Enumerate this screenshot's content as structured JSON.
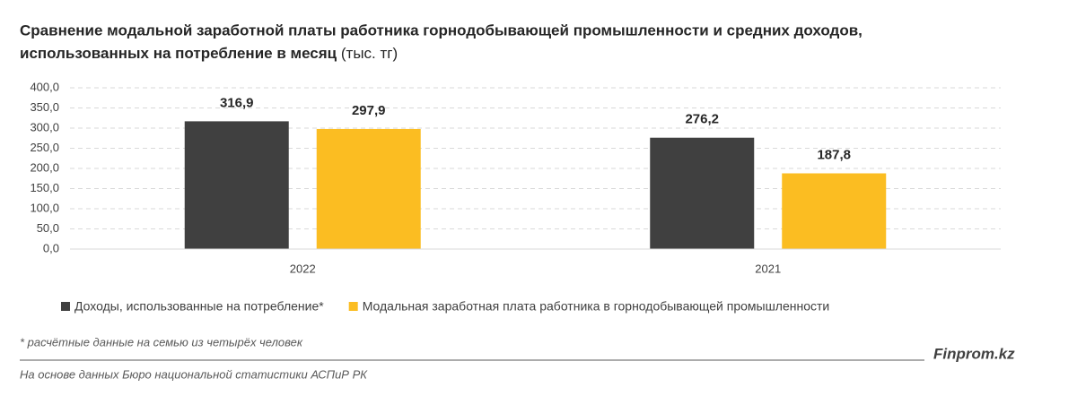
{
  "chart_data": {
    "type": "bar",
    "title": "Сравнение модальной заработной платы работника горнодобывающей промышленности и средних доходов,",
    "title_line2": "использованных на потребление в месяц",
    "unit": "(тыс. тг)",
    "categories": [
      "2022",
      "2021"
    ],
    "series": [
      {
        "name": "Доходы, использованные на потребление*",
        "color": "#404040",
        "values": [
          316.9,
          276.2
        ],
        "value_labels": [
          "316,9",
          "276,2"
        ]
      },
      {
        "name": "Модальная заработная плата работника в горнодобывающей промышленности",
        "color": "#fbbd22",
        "values": [
          297.9,
          187.8
        ],
        "value_labels": [
          "297,9",
          "187,8"
        ]
      }
    ],
    "ylim": [
      0,
      400
    ],
    "yticks": [
      {
        "value": 0,
        "label": "0,0"
      },
      {
        "value": 50,
        "label": "50,0"
      },
      {
        "value": 100,
        "label": "100,0"
      },
      {
        "value": 150,
        "label": "150,0"
      },
      {
        "value": 200,
        "label": "200,0"
      },
      {
        "value": 250,
        "label": "250,0"
      },
      {
        "value": 300,
        "label": "300,0"
      },
      {
        "value": 350,
        "label": "350,0"
      },
      {
        "value": 400,
        "label": "400,0"
      }
    ],
    "grid": true,
    "legend": "bottom",
    "footnote": "* расчётные данные на семью из четырёх человек",
    "brand": "Finprom.kz",
    "source": "На основе данных Бюро национальной статистики АСПиР РК"
  }
}
